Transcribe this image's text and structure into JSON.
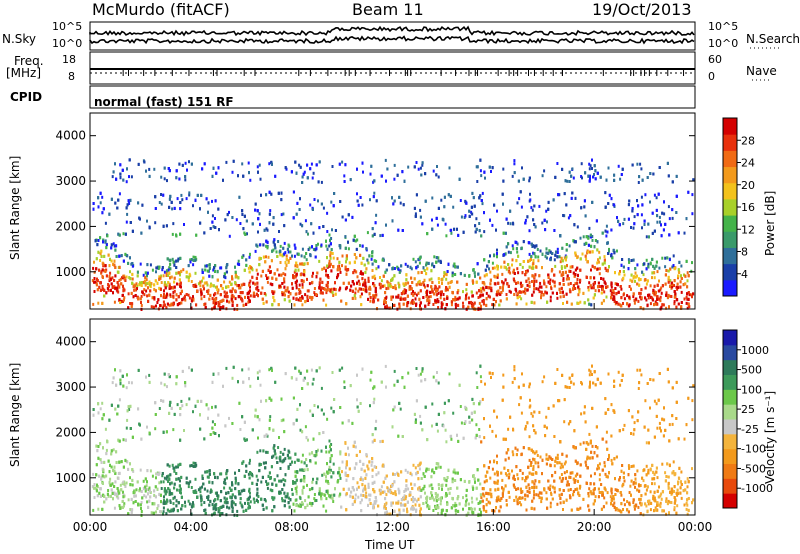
{
  "header": {
    "station": "McMurdo (fitACF)",
    "beam": "Beam 11",
    "date": "19/Oct/2013"
  },
  "top_panels": {
    "nsky_label": "N.Sky",
    "nsearch_label": "N.Search",
    "noise_ticks_left": [
      "10^5",
      "10^0"
    ],
    "noise_ticks_right": [
      "10^5",
      "10^0"
    ],
    "freq_label_1": "Freq.",
    "freq_label_2": "[MHz]",
    "freq_ticks": [
      "18",
      "8"
    ],
    "nave_label": "Nave",
    "nave_ticks": [
      "60",
      "0"
    ],
    "cpid_label": "CPID",
    "cpid_value": "normal (fast) 151 RF"
  },
  "chart_data": [
    {
      "type": "heatmap",
      "name": "power-panel",
      "ylabel": "Slant Range [km]",
      "y_ticks": [
        "4000",
        "3000",
        "2000",
        "1000"
      ],
      "ylim": [
        180,
        4500
      ],
      "colorbar_label": "Power [dB]",
      "colorbar_ticks": [
        "28",
        "24",
        "20",
        "16",
        "12",
        "8",
        "4"
      ],
      "colors": [
        "#1a1aff",
        "#1a3fa8",
        "#2f6f9a",
        "#3a9a6a",
        "#44b34a",
        "#a8d02a",
        "#f3c21c",
        "#f39a1c",
        "#f06a14",
        "#e8300c",
        "#d40000"
      ]
    },
    {
      "type": "heatmap",
      "name": "velocity-panel",
      "ylabel": "Slant Range [km]",
      "y_ticks": [
        "4000",
        "3000",
        "2000",
        "1000"
      ],
      "ylim": [
        180,
        4500
      ],
      "colorbar_label": "Velocity [m s⁻¹]",
      "colorbar_ticks": [
        "1000",
        "500",
        "100",
        "25",
        "-25",
        "-100",
        "-500",
        "-1000"
      ],
      "colors": [
        "#1a1aaa",
        "#2a4aa0",
        "#2e7a5a",
        "#3d9a5a",
        "#6cc84a",
        "#a9d98a",
        "#c8c8c8",
        "#f4b43c",
        "#f39a1c",
        "#ef7a14",
        "#e84a0c",
        "#d40000"
      ]
    }
  ],
  "x_axis": {
    "ticks": [
      "00:00",
      "04:00",
      "08:00",
      "12:00",
      "16:00",
      "20:00",
      "00:00"
    ],
    "label": "Time UT"
  }
}
